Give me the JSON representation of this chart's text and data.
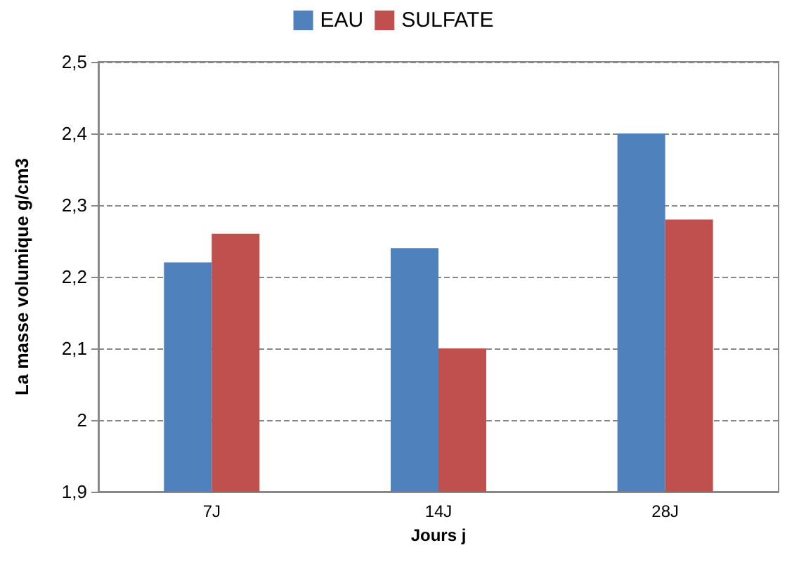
{
  "chart_data": {
    "type": "bar",
    "xlabel": "Jours j",
    "ylabel": "La masse volumique g/cm3",
    "categories": [
      "7J",
      "14J",
      "28J"
    ],
    "series": [
      {
        "name": "EAU",
        "color": "#4f81bd",
        "values": [
          2.22,
          2.24,
          2.4
        ]
      },
      {
        "name": "SULFATE",
        "color": "#c0504d",
        "values": [
          2.26,
          2.1,
          2.28
        ]
      }
    ],
    "ylim": [
      1.9,
      2.5
    ],
    "yticks": [
      {
        "value": 1.9,
        "label": "1,9"
      },
      {
        "value": 2,
        "label": "2"
      },
      {
        "value": 2.1,
        "label": "2,1"
      },
      {
        "value": 2.2,
        "label": "2,2"
      },
      {
        "value": 2.3,
        "label": "2,3"
      },
      {
        "value": 2.4,
        "label": "2,4"
      },
      {
        "value": 2.5,
        "label": "2,5"
      }
    ],
    "grid": "y",
    "legend": "top"
  }
}
